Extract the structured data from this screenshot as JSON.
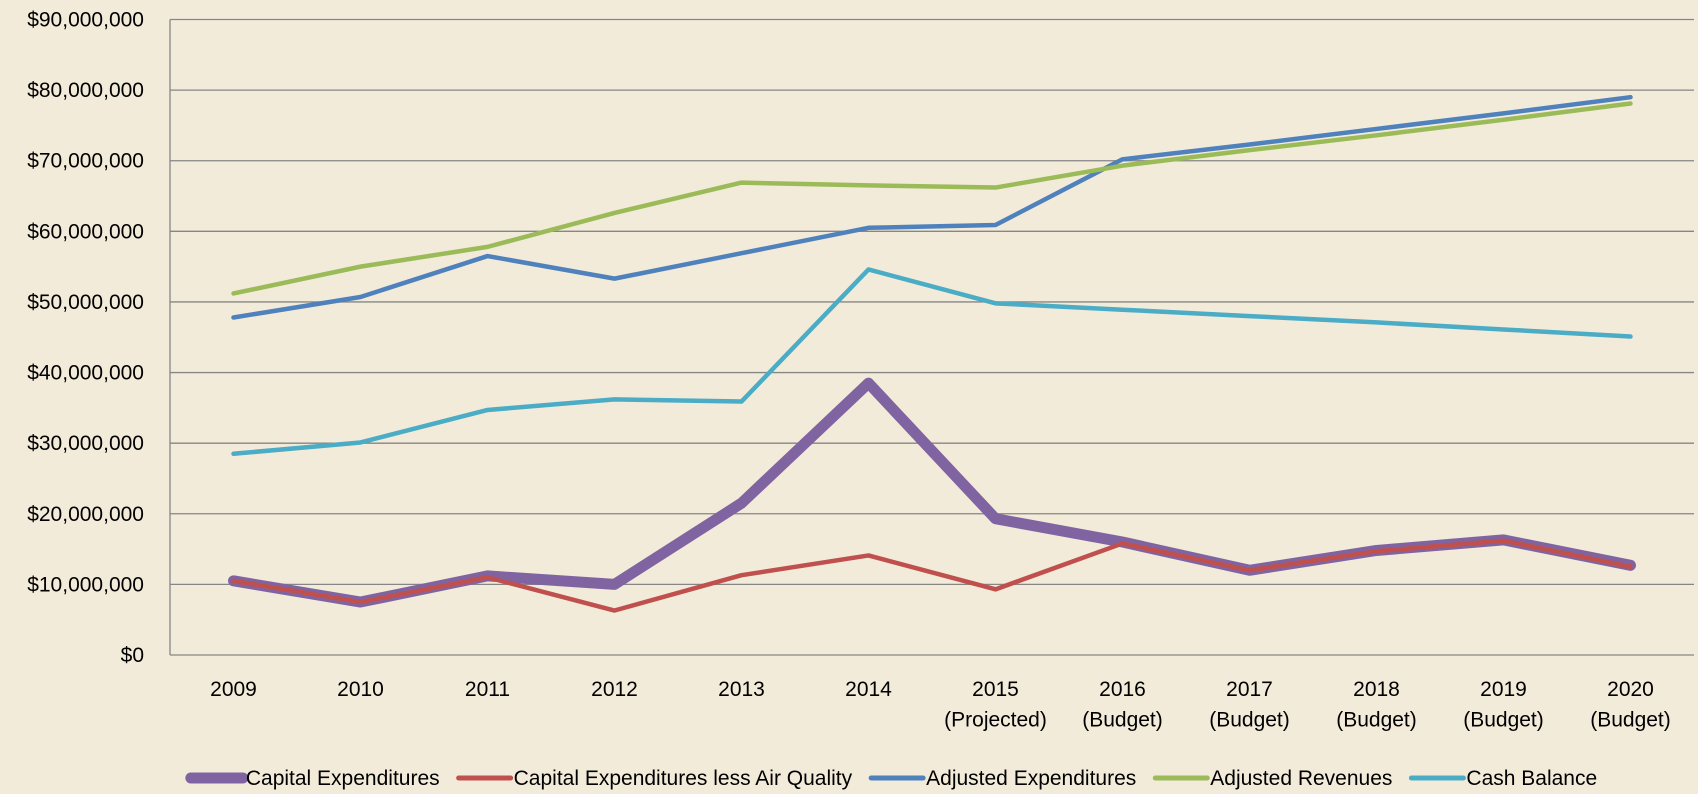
{
  "chart_data": {
    "type": "line",
    "categories": [
      "2009",
      "2010",
      "2011",
      "2012",
      "2013",
      "2014",
      "2015\n(Projected)",
      "2016\n(Budget)",
      "2017\n(Budget)",
      "2018\n(Budget)",
      "2019\n(Budget)",
      "2020\n(Budget)"
    ],
    "series": [
      {
        "name": "Capital Expenditures",
        "color": "#8064a2",
        "values": [
          10500000,
          7500000,
          11200000,
          10000000,
          21500000,
          38500000,
          19300000,
          16000000,
          12000000,
          14800000,
          16300000,
          12700000
        ]
      },
      {
        "name": "Capital Expenditures less Air Quality",
        "color": "#c0504d",
        "values": [
          10500000,
          7500000,
          11000000,
          6300000,
          11300000,
          14100000,
          9300000,
          15800000,
          12000000,
          14700000,
          16200000,
          12500000
        ]
      },
      {
        "name": "Adjusted Expenditures",
        "color": "#4f81bd",
        "values": [
          47800000,
          50700000,
          56500000,
          53300000,
          56900000,
          60500000,
          60900000,
          70200000,
          72300000,
          74500000,
          76700000,
          79000000
        ]
      },
      {
        "name": "Adjusted Revenues",
        "color": "#9bbb59",
        "values": [
          51200000,
          55000000,
          57800000,
          62600000,
          66900000,
          66500000,
          66200000,
          69300000,
          71500000,
          73600000,
          75800000,
          78100000
        ]
      },
      {
        "name": "Cash Balance",
        "color": "#4bacc6",
        "values": [
          28500000,
          30100000,
          34700000,
          36200000,
          35900000,
          54600000,
          49800000,
          48900000,
          48000000,
          47100000,
          46100000,
          45100000
        ]
      }
    ],
    "ylim": [
      0,
      90000000
    ],
    "yticks": [
      {
        "value": 0,
        "label": "$0"
      },
      {
        "value": 10000000,
        "label": "$10,000,000"
      },
      {
        "value": 20000000,
        "label": "$20,000,000"
      },
      {
        "value": 30000000,
        "label": "$30,000,000"
      },
      {
        "value": 40000000,
        "label": "$40,000,000"
      },
      {
        "value": 50000000,
        "label": "$50,000,000"
      },
      {
        "value": 60000000,
        "label": "$60,000,000"
      },
      {
        "value": 70000000,
        "label": "$70,000,000"
      },
      {
        "value": 80000000,
        "label": "$80,000,000"
      },
      {
        "value": 90000000,
        "label": "$90,000,000"
      }
    ],
    "grid": true,
    "legend": "bottom"
  }
}
